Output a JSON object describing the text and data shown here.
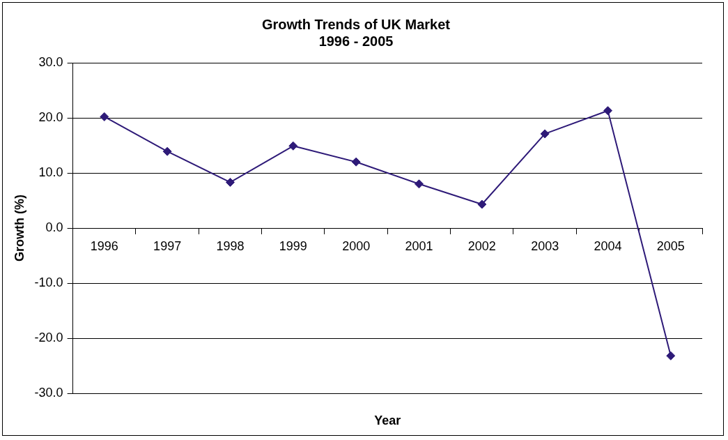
{
  "chart_data": {
    "type": "line",
    "title": "Growth Trends of UK Market\n1996 - 2005",
    "xlabel": "Year",
    "ylabel": "Growth (%)",
    "categories": [
      "1996",
      "1997",
      "1998",
      "1999",
      "2000",
      "2001",
      "2002",
      "2003",
      "2004",
      "2005"
    ],
    "series": [
      {
        "color": "#2e1a78",
        "values": [
          20.2,
          13.9,
          8.3,
          14.9,
          12.0,
          8.0,
          4.3,
          17.1,
          21.3,
          -23.2
        ]
      }
    ],
    "ylim": [
      -30,
      30
    ],
    "yticks": [
      {
        "value": -30,
        "label": "-30.0"
      },
      {
        "value": -20,
        "label": "-20.0"
      },
      {
        "value": -10,
        "label": "-10.0"
      },
      {
        "value": 0,
        "label": "0.0"
      },
      {
        "value": 10,
        "label": "10.0"
      },
      {
        "value": 20,
        "label": "20.0"
      },
      {
        "value": 30,
        "label": "30.0"
      }
    ],
    "grid": "y",
    "legend": false,
    "marker": "diamond",
    "line_style": "solid"
  }
}
